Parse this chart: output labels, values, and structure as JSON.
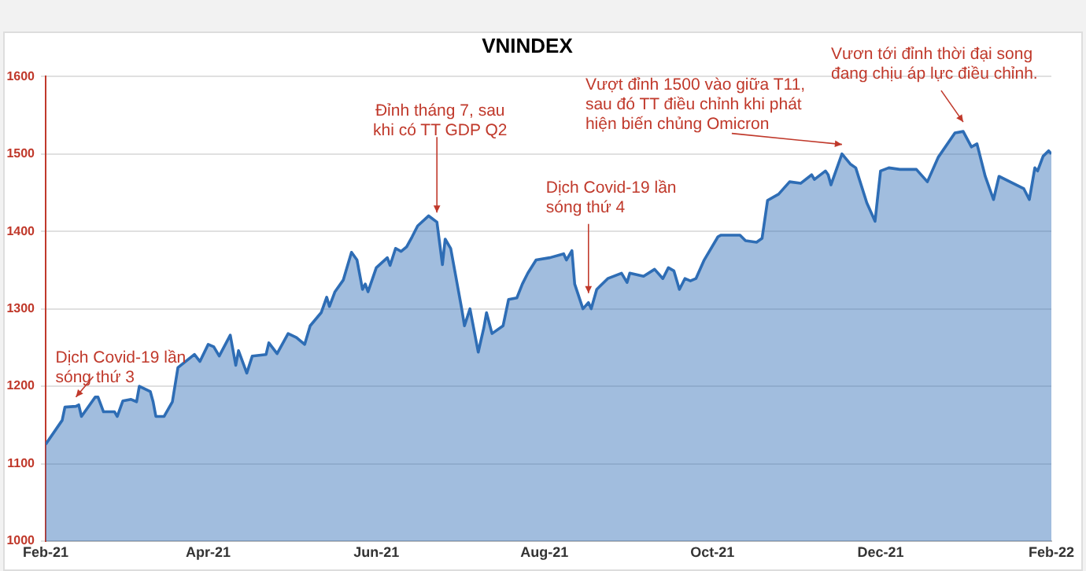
{
  "chart_data": {
    "type": "area",
    "title": "VNINDEX",
    "x": [
      "2021-02-01",
      "2021-02-07",
      "2021-02-08",
      "2021-02-12",
      "2021-02-13",
      "2021-02-14",
      "2021-02-19",
      "2021-02-20",
      "2021-02-22",
      "2021-02-26",
      "2021-02-27",
      "2021-03-01",
      "2021-03-04",
      "2021-03-06",
      "2021-03-07",
      "2021-03-11",
      "2021-03-12",
      "2021-03-13",
      "2021-03-16",
      "2021-03-19",
      "2021-03-21",
      "2021-03-27",
      "2021-03-29",
      "2021-04-01",
      "2021-04-03",
      "2021-04-05",
      "2021-04-09",
      "2021-04-11",
      "2021-04-12",
      "2021-04-15",
      "2021-04-17",
      "2021-04-22",
      "2021-04-23",
      "2021-04-26",
      "2021-04-30",
      "2021-05-03",
      "2021-05-06",
      "2021-05-08",
      "2021-05-12",
      "2021-05-14",
      "2021-05-15",
      "2021-05-17",
      "2021-05-20",
      "2021-05-23",
      "2021-05-25",
      "2021-05-27",
      "2021-05-28",
      "2021-05-29",
      "2021-06-01",
      "2021-06-05",
      "2021-06-06",
      "2021-06-08",
      "2021-06-10",
      "2021-06-12",
      "2021-06-14",
      "2021-06-16",
      "2021-06-20",
      "2021-06-23",
      "2021-06-25",
      "2021-06-26",
      "2021-06-28",
      "2021-07-02",
      "2021-07-03",
      "2021-07-05",
      "2021-07-08",
      "2021-07-10",
      "2021-07-11",
      "2021-07-13",
      "2021-07-17",
      "2021-07-19",
      "2021-07-22",
      "2021-07-24",
      "2021-07-26",
      "2021-07-29",
      "2021-08-03",
      "2021-08-08",
      "2021-08-09",
      "2021-08-11",
      "2021-08-12",
      "2021-08-15",
      "2021-08-17",
      "2021-08-18",
      "2021-08-20",
      "2021-08-24",
      "2021-08-29",
      "2021-08-31",
      "2021-09-01",
      "2021-09-06",
      "2021-09-10",
      "2021-09-13",
      "2021-09-15",
      "2021-09-17",
      "2021-09-19",
      "2021-09-21",
      "2021-09-23",
      "2021-09-25",
      "2021-09-28",
      "2021-10-03",
      "2021-10-04",
      "2021-10-11",
      "2021-10-13",
      "2021-10-17",
      "2021-10-19",
      "2021-10-21",
      "2021-10-25",
      "2021-10-29",
      "2021-11-02",
      "2021-11-06",
      "2021-11-07",
      "2021-11-11",
      "2021-11-12",
      "2021-11-13",
      "2021-11-17",
      "2021-11-20",
      "2021-11-22",
      "2021-11-26",
      "2021-11-29",
      "2021-12-01",
      "2021-12-04",
      "2021-12-08",
      "2021-12-14",
      "2021-12-18",
      "2021-12-22",
      "2021-12-28",
      "2021-12-31",
      "2022-01-03",
      "2022-01-05",
      "2022-01-08",
      "2022-01-11",
      "2022-01-13",
      "2022-01-22",
      "2022-01-24",
      "2022-01-26",
      "2022-01-27",
      "2022-01-29",
      "2022-01-31",
      "2022-02-01"
    ],
    "series": [
      {
        "color": "#2e6db5",
        "values": [
          1125,
          1156,
          1173,
          1174,
          1176,
          1161,
          1186,
          1186,
          1167,
          1167,
          1161,
          1181,
          1183,
          1180,
          1200,
          1193,
          1180,
          1161,
          1161,
          1180,
          1224,
          1241,
          1232,
          1254,
          1251,
          1239,
          1266,
          1227,
          1246,
          1217,
          1239,
          1241,
          1256,
          1242,
          1268,
          1263,
          1254,
          1278,
          1295,
          1315,
          1303,
          1322,
          1337,
          1373,
          1363,
          1325,
          1332,
          1322,
          1353,
          1366,
          1356,
          1378,
          1374,
          1380,
          1393,
          1407,
          1420,
          1412,
          1357,
          1390,
          1378,
          1300,
          1278,
          1300,
          1244,
          1275,
          1295,
          1268,
          1278,
          1312,
          1314,
          1332,
          1346,
          1363,
          1366,
          1371,
          1363,
          1375,
          1332,
          1300,
          1308,
          1300,
          1325,
          1339,
          1346,
          1334,
          1346,
          1342,
          1351,
          1339,
          1353,
          1349,
          1325,
          1339,
          1336,
          1339,
          1363,
          1393,
          1395,
          1395,
          1388,
          1386,
          1391,
          1440,
          1448,
          1464,
          1462,
          1473,
          1467,
          1478,
          1473,
          1460,
          1500,
          1487,
          1482,
          1437,
          1413,
          1478,
          1482,
          1480,
          1480,
          1464,
          1496,
          1527,
          1529,
          1509,
          1513,
          1471,
          1441,
          1471,
          1455,
          1441,
          1482,
          1478,
          1497,
          1504,
          1500
        ]
      }
    ],
    "xlim": [
      "2021-02-01",
      "2022-02-01"
    ],
    "xticks": [
      {
        "value": "2021-02-01",
        "label": "Feb-21"
      },
      {
        "value": "2021-04-01",
        "label": "Apr-21"
      },
      {
        "value": "2021-06-01",
        "label": "Jun-21"
      },
      {
        "value": "2021-08-01",
        "label": "Aug-21"
      },
      {
        "value": "2021-10-01",
        "label": "Oct-21"
      },
      {
        "value": "2021-12-01",
        "label": "Dec-21"
      },
      {
        "value": "2022-02-01",
        "label": "Feb-22"
      }
    ],
    "ylim": [
      1000,
      1600
    ],
    "yticks": [
      1000,
      1100,
      1200,
      1300,
      1400,
      1500,
      1600
    ],
    "grid": "y",
    "legend": false,
    "marker": "none",
    "line_style": "solid",
    "annotations": [
      {
        "text": "Dịch Covid-19 lần\nsóng thứ 3",
        "x": "2021-02-12",
        "y": 1174
      },
      {
        "text": "Đỉnh tháng 7, sau\nkhi có TT GDP Q2",
        "x": "2021-06-23",
        "y": 1412
      },
      {
        "text": "Dịch Covid-19 lần\nsóng thứ 4",
        "x": "2021-08-17",
        "y": 1308
      },
      {
        "text": "Vượt đỉnh 1500 vào giữa T11,\nsau đó TT điều chỉnh khi phát\nhiện biến chủng Omicron",
        "x": "2021-11-17",
        "y": 1500
      },
      {
        "text": "Vươn tới đỉnh thời đại song\nđang chịu áp lực điều chỉnh.",
        "x": "2021-12-31",
        "y": 1529
      }
    ]
  }
}
